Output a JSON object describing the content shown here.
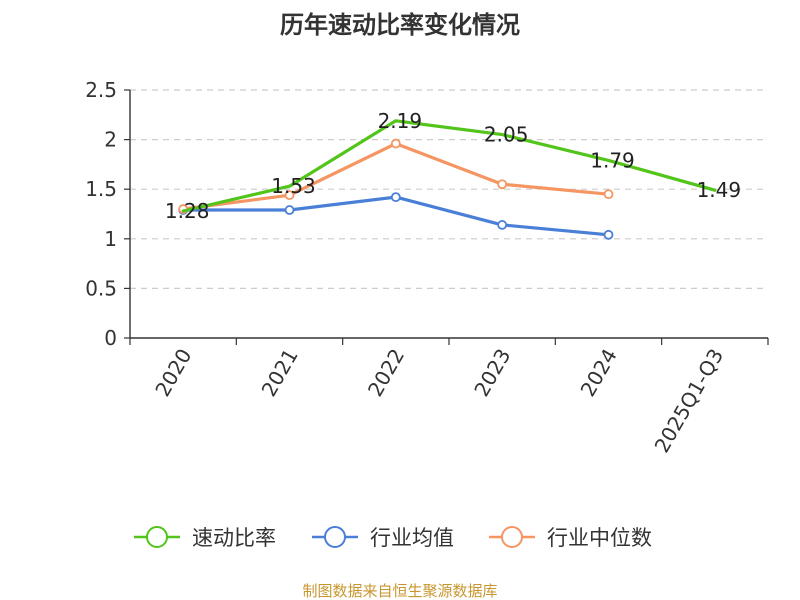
{
  "source_note": "制图数据来自恒生聚源数据库",
  "colors": {
    "source": "#c8962e",
    "grid": "#cccccc",
    "axis": "#333333"
  },
  "chart_data": {
    "type": "line",
    "title": "历年速动比率变化情况",
    "categories": [
      "2020",
      "2021",
      "2022",
      "2023",
      "2024",
      "2025Q1-Q3"
    ],
    "yticks": [
      "0",
      "0.5",
      "1",
      "1.5",
      "2",
      "2.5"
    ],
    "ylim": [
      0,
      2.5
    ],
    "grid": true,
    "legend_position": "bottom",
    "series": [
      {
        "name": "速动比率",
        "color": "#52c41a",
        "values": [
          1.28,
          1.53,
          2.19,
          2.05,
          1.79,
          1.49
        ],
        "labels": [
          "1.28",
          "1.53",
          "2.19",
          "2.05",
          "1.79",
          "1.49"
        ],
        "show_markers": false
      },
      {
        "name": "行业均值",
        "color": "#4a7fd8",
        "values": [
          1.29,
          1.29,
          1.42,
          1.14,
          1.04,
          null
        ],
        "show_markers": true
      },
      {
        "name": "行业中位数",
        "color": "#f59562",
        "values": [
          1.3,
          1.44,
          1.96,
          1.55,
          1.45,
          null
        ],
        "show_markers": true
      }
    ]
  }
}
